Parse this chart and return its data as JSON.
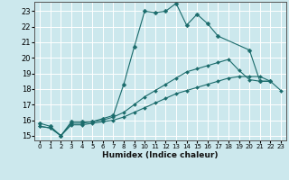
{
  "title": "",
  "xlabel": "Humidex (Indice chaleur)",
  "bg_color": "#cce8ed",
  "line_color": "#1a6b6b",
  "grid_color": "#ffffff",
  "xlim": [
    -0.5,
    23.5
  ],
  "ylim": [
    14.7,
    23.6
  ],
  "xticks": [
    0,
    1,
    2,
    3,
    4,
    5,
    6,
    7,
    8,
    9,
    10,
    11,
    12,
    13,
    14,
    15,
    16,
    17,
    18,
    19,
    20,
    21,
    22,
    23
  ],
  "yticks": [
    15,
    16,
    17,
    18,
    19,
    20,
    21,
    22,
    23
  ],
  "lines": [
    {
      "x": [
        0,
        1,
        2,
        3,
        4,
        5,
        6,
        7,
        8,
        9,
        10,
        11,
        12,
        13,
        14,
        15,
        16,
        17,
        20,
        21,
        22
      ],
      "y": [
        15.8,
        15.6,
        15.0,
        15.9,
        15.9,
        15.9,
        16.1,
        16.3,
        18.3,
        20.7,
        23.0,
        22.9,
        23.0,
        23.5,
        22.1,
        22.8,
        22.2,
        21.4,
        20.5,
        18.5,
        18.5
      ]
    },
    {
      "x": [
        0,
        1,
        2,
        3,
        4,
        5,
        6,
        7,
        8,
        9,
        10,
        11,
        12,
        13,
        14,
        15,
        16,
        17,
        18,
        19,
        20,
        21,
        22
      ],
      "y": [
        15.6,
        15.5,
        15.0,
        15.8,
        15.8,
        15.9,
        16.0,
        16.2,
        16.5,
        17.0,
        17.5,
        17.9,
        18.3,
        18.7,
        19.1,
        19.3,
        19.5,
        19.7,
        19.9,
        19.2,
        18.6,
        18.5,
        18.5
      ]
    },
    {
      "x": [
        0,
        1,
        2,
        3,
        4,
        5,
        6,
        7,
        8,
        9,
        10,
        11,
        12,
        13,
        14,
        15,
        16,
        17,
        18,
        19,
        20,
        21,
        22,
        23
      ],
      "y": [
        15.6,
        15.5,
        15.0,
        15.7,
        15.7,
        15.8,
        15.9,
        16.0,
        16.2,
        16.5,
        16.8,
        17.1,
        17.4,
        17.7,
        17.9,
        18.1,
        18.3,
        18.5,
        18.7,
        18.8,
        18.8,
        18.8,
        18.5,
        17.9
      ]
    }
  ]
}
